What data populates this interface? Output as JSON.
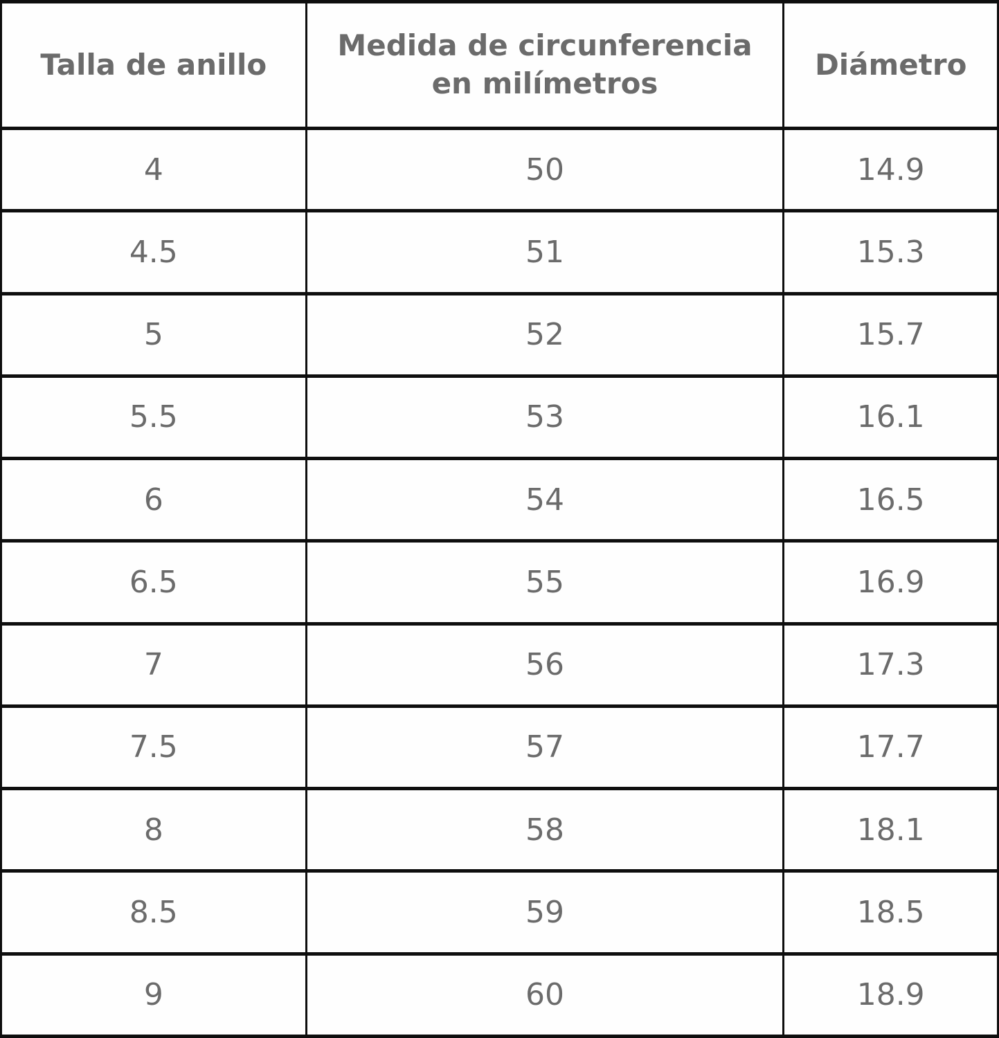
{
  "colors": {
    "border": "#0e0e0e",
    "text": "#6b6b6b",
    "background": "#fefefe"
  },
  "table": {
    "columns": [
      {
        "label": "Talla de anillo"
      },
      {
        "label": "Medida de circunferencia en milímetros"
      },
      {
        "label": "Diámetro"
      }
    ],
    "rows": [
      [
        "4",
        "50",
        "14.9"
      ],
      [
        "4.5",
        "51",
        "15.3"
      ],
      [
        "5",
        "52",
        "15.7"
      ],
      [
        "5.5",
        "53",
        "16.1"
      ],
      [
        "6",
        "54",
        "16.5"
      ],
      [
        "6.5",
        "55",
        "16.9"
      ],
      [
        "7",
        "56",
        "17.3"
      ],
      [
        "7.5",
        "57",
        "17.7"
      ],
      [
        "8",
        "58",
        "18.1"
      ],
      [
        "8.5",
        "59",
        "18.5"
      ],
      [
        "9",
        "60",
        "18.9"
      ]
    ]
  },
  "chart_data": {
    "type": "table",
    "title": "",
    "columns": [
      "Talla de anillo",
      "Medida de circunferencia en milímetros",
      "Diámetro"
    ],
    "rows": [
      [
        4,
        50,
        14.9
      ],
      [
        4.5,
        51,
        15.3
      ],
      [
        5,
        52,
        15.7
      ],
      [
        5.5,
        53,
        16.1
      ],
      [
        6,
        54,
        16.5
      ],
      [
        6.5,
        55,
        16.9
      ],
      [
        7,
        56,
        17.3
      ],
      [
        7.5,
        57,
        17.7
      ],
      [
        8,
        58,
        18.1
      ],
      [
        8.5,
        59,
        18.5
      ],
      [
        9,
        60,
        18.9
      ]
    ]
  }
}
